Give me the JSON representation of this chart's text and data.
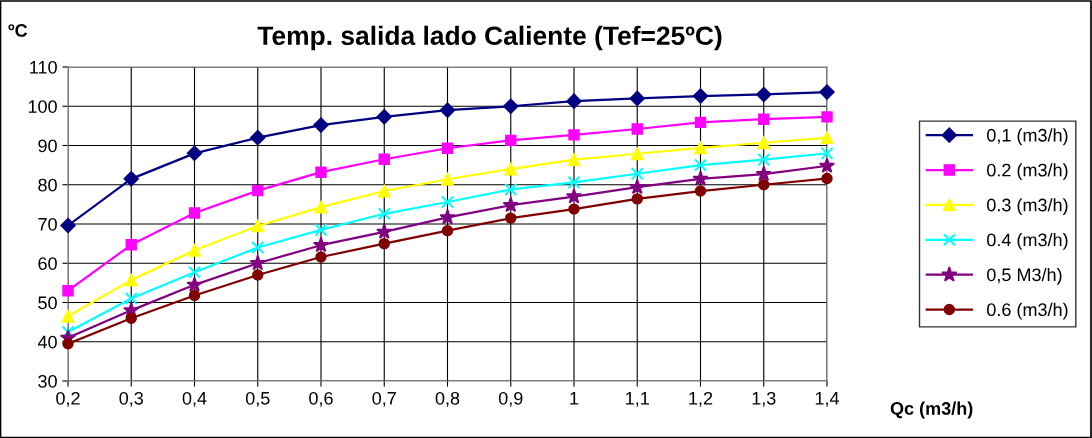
{
  "chart_data": {
    "type": "line",
    "title": "Temp. salida lado Caliente (Tef=25ºC)",
    "ylabel": "ºC",
    "xlabel": "Qc (m3/h)",
    "categories": [
      "0,2",
      "0,3",
      "0,4",
      "0,5",
      "0,6",
      "0,7",
      "0,8",
      "0,9",
      "1",
      "1,1",
      "1,2",
      "1,3",
      "1,4"
    ],
    "ylim": [
      30,
      110
    ],
    "yticks": [
      30,
      40,
      50,
      60,
      70,
      80,
      90,
      100,
      110
    ],
    "grid": true,
    "legend": "right",
    "series": [
      {
        "name": "0,1 (m3/h)",
        "color": "#000080",
        "marker": "diamond",
        "values": [
          69.6,
          81.5,
          88,
          92,
          95.2,
          97.3,
          99,
          100,
          101.3,
          102,
          102.6,
          103,
          103.6
        ]
      },
      {
        "name": "0.2 (m3/h)",
        "color": "#ff00ff",
        "marker": "square",
        "values": [
          53,
          64.7,
          72.8,
          78.5,
          83.2,
          86.5,
          89.3,
          91.3,
          92.7,
          94.2,
          95.9,
          96.7,
          97.3
        ]
      },
      {
        "name": "0.3 (m3/h)",
        "color": "#ffff00",
        "marker": "triangle",
        "values": [
          46.5,
          55.7,
          63.3,
          69.5,
          74.3,
          78.4,
          81.4,
          84,
          86.4,
          87.9,
          89.4,
          90.7,
          92
        ]
      },
      {
        "name": "0.4 (m3/h)",
        "color": "#00ffff",
        "marker": "cross",
        "values": [
          42.5,
          51,
          57.7,
          64,
          68.5,
          72.6,
          75.6,
          78.8,
          80.6,
          82.8,
          85,
          86.4,
          88
        ]
      },
      {
        "name": "0,5 M3/h)",
        "color": "#800080",
        "marker": "star",
        "values": [
          41,
          48,
          54.5,
          60,
          64.6,
          68,
          71.7,
          74.8,
          77,
          79.4,
          81.5,
          82.7,
          84.8
        ]
      },
      {
        "name": "0.6 (m3/h)",
        "color": "#800000",
        "marker": "circle",
        "values": [
          39.5,
          46,
          51.8,
          57,
          61.6,
          65,
          68.3,
          71.5,
          73.8,
          76.4,
          78.4,
          80,
          81.6
        ]
      }
    ]
  }
}
